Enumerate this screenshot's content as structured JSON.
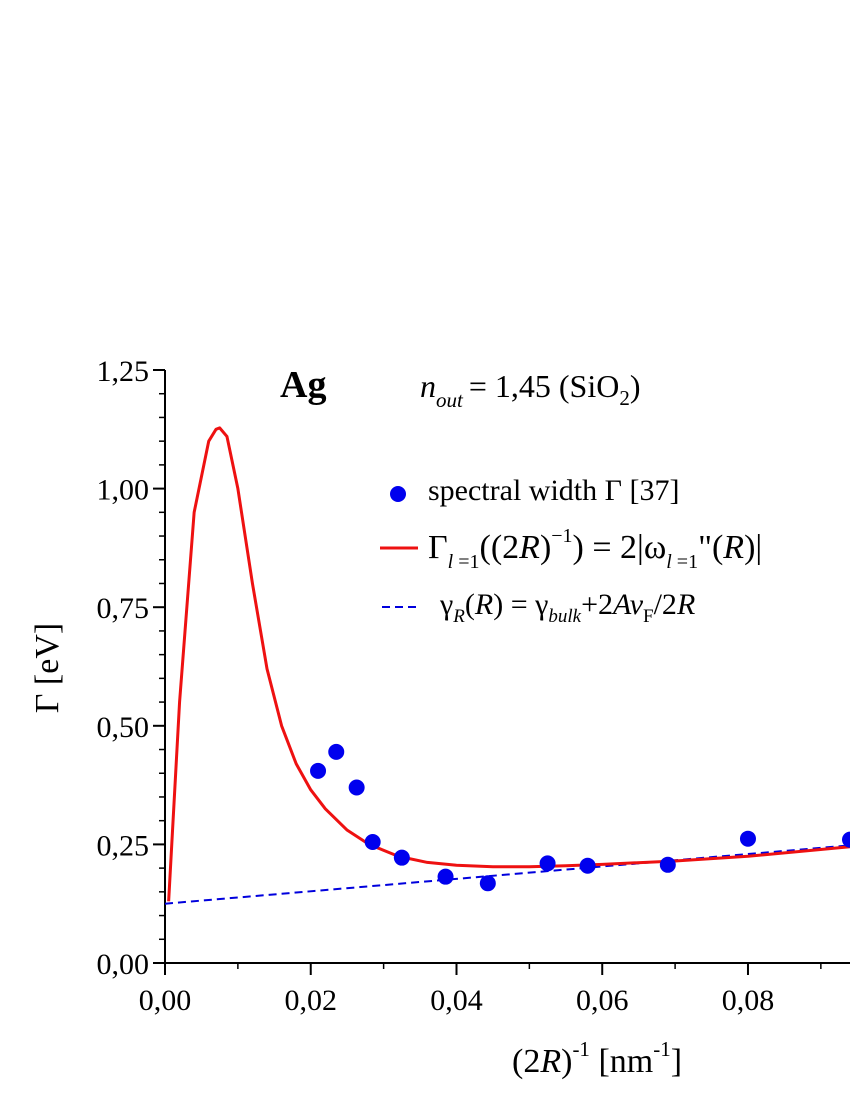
{
  "chart_data": {
    "type": "scatter",
    "title": "Ag",
    "annotation": {
      "n_symbol": "n",
      "n_sub": "out",
      "rest": "= 1,45 (SiO",
      "sub2": "2",
      "close": ")"
    },
    "xlabel": {
      "open": "(2",
      "R": "R",
      "close": ")",
      "sup": "-1",
      "units_open": " [nm",
      "units_sup": "-1",
      "units_close": "]"
    },
    "ylabel": "Γ [eV]",
    "xlim": [
      0,
      0.094
    ],
    "ylim": [
      0,
      1.25
    ],
    "x_ticks": [
      0,
      0.02,
      0.04,
      0.06,
      0.08
    ],
    "x_tick_labels": [
      "0,00",
      "0,02",
      "0,04",
      "0,06",
      "0,08"
    ],
    "y_ticks": [
      0,
      0.25,
      0.5,
      0.75,
      1.0,
      1.25
    ],
    "y_tick_labels": [
      "0,00",
      "0,25",
      "0,50",
      "0,75",
      "1,00",
      "1,25"
    ],
    "legend_position": "top-right",
    "series": [
      {
        "name": "spectral width Γ [37]",
        "kind": "scatter",
        "color": "#0000ee",
        "x": [
          0.021,
          0.0235,
          0.0263,
          0.0285,
          0.0325,
          0.0385,
          0.0443,
          0.0525,
          0.058,
          0.069,
          0.08,
          0.094
        ],
        "y": [
          0.405,
          0.445,
          0.37,
          0.255,
          0.222,
          0.182,
          0.168,
          0.21,
          0.205,
          0.207,
          0.262,
          0.26
        ]
      },
      {
        "name_parts": {
          "G": "Γ",
          "l1": "l",
          "eq1": " =1",
          "lhs_open": "((2",
          "R1": "R",
          "close1": ")",
          "sup": "−1",
          "mid": ") = 2|ω",
          "l2": "l",
          "eq2": " =1",
          "dq": "\"(",
          "R2": "R",
          "end": ")|"
        },
        "kind": "line",
        "color": "#ee1111",
        "x": [
          0.0005,
          0.002,
          0.004,
          0.006,
          0.007,
          0.0075,
          0.0085,
          0.01,
          0.012,
          0.014,
          0.016,
          0.018,
          0.02,
          0.022,
          0.025,
          0.028,
          0.032,
          0.036,
          0.04,
          0.045,
          0.05,
          0.055,
          0.06,
          0.07,
          0.08,
          0.094
        ],
        "y": [
          0.13,
          0.55,
          0.95,
          1.1,
          1.125,
          1.128,
          1.11,
          1.0,
          0.8,
          0.62,
          0.5,
          0.42,
          0.365,
          0.325,
          0.28,
          0.25,
          0.225,
          0.212,
          0.206,
          0.203,
          0.203,
          0.205,
          0.208,
          0.215,
          0.225,
          0.245
        ]
      },
      {
        "name_parts": {
          "g": "γ",
          "subR": "R",
          "p1": "(",
          "R": "R",
          "p2": ") = γ",
          "bulk": "bulk",
          "p3": "+2",
          "A": "A",
          "v": "v",
          "F": "F",
          "slash": "/2",
          "R2": "R"
        },
        "kind": "dashed-line",
        "color": "#0000dd",
        "x": [
          0,
          0.094
        ],
        "y": [
          0.125,
          0.248
        ]
      }
    ]
  }
}
